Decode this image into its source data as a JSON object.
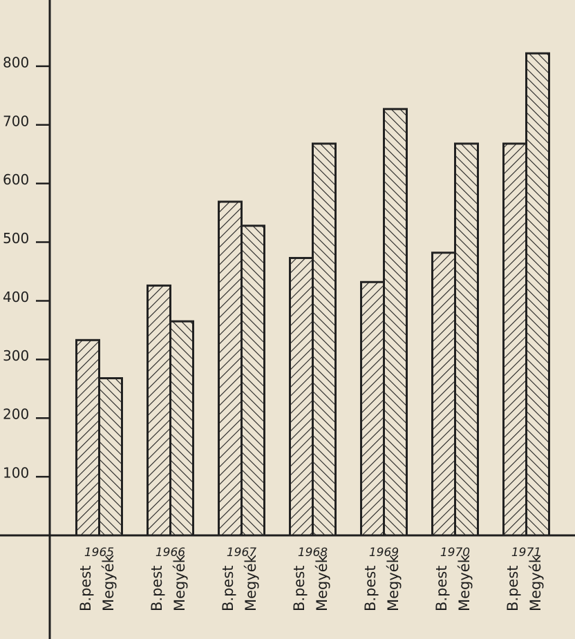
{
  "chart_data": {
    "type": "bar",
    "categories": [
      "1965",
      "1966",
      "1967",
      "1968",
      "1969",
      "1970",
      "1971"
    ],
    "series": [
      {
        "name": "B.pest",
        "color": "#222222",
        "values": [
          333,
          426,
          569,
          473,
          432,
          482,
          668
        ]
      },
      {
        "name": "Megyék",
        "color": "#222222",
        "values": [
          268,
          365,
          528,
          668,
          727,
          668,
          822
        ]
      }
    ],
    "ylim": [
      0,
      900
    ],
    "yticks": [
      100,
      200,
      300,
      400,
      500,
      600,
      700,
      800
    ],
    "grid": false
  }
}
